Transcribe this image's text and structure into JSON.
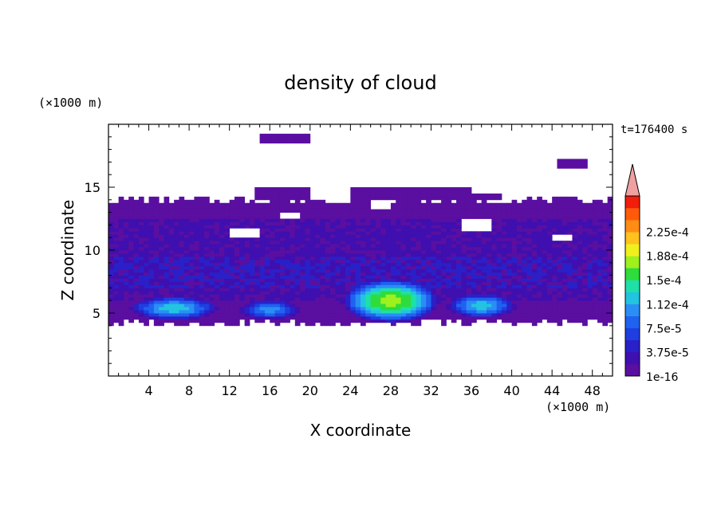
{
  "chart_data": {
    "type": "heatmap",
    "title": "density of cloud",
    "xlabel": "X coordinate",
    "ylabel": "Z coordinate",
    "x_unit": "(×1000 m)",
    "y_unit": "(×1000 m)",
    "time_label": "t=176400 s",
    "xlim": [
      0,
      50
    ],
    "ylim": [
      0,
      20
    ],
    "x_ticks": [
      4,
      8,
      12,
      16,
      20,
      24,
      28,
      32,
      36,
      40,
      44,
      48
    ],
    "y_ticks": [
      5,
      10,
      15
    ],
    "colorbar": {
      "labels": [
        "2.25e-4",
        "1.88e-4",
        "1.5e-4",
        "1.12e-4",
        "7.5e-5",
        "3.75e-5",
        "1e-16"
      ],
      "label_levels": [
        0.000225,
        0.000188,
        0.00015,
        0.000112,
        7.5e-05,
        3.75e-05,
        0
      ],
      "colors": [
        "#5a0fa0",
        "#3f0fb0",
        "#2a20c8",
        "#1e3ee0",
        "#1f62f0",
        "#2a8ef5",
        "#22c4e0",
        "#1ee0a8",
        "#2edc3c",
        "#9ef01e",
        "#f0f01e",
        "#ffc21e",
        "#ff8c14",
        "#ff5a0a",
        "#f01e0a"
      ],
      "extend_color": "#f0a0a0"
    },
    "cloud_field": {
      "description_levels": "value index 0..15 (0 = none, 1 = lowest contour band)",
      "background_band": {
        "x": [
          0,
          50
        ],
        "z": [
          4.2,
          14.0
        ],
        "level": 1
      },
      "upper_patches": [
        {
          "x": [
            14.5,
            20
          ],
          "z": [
            14,
            15
          ],
          "level": 1
        },
        {
          "x": [
            24,
            36
          ],
          "z": [
            14,
            15
          ],
          "level": 1
        },
        {
          "x": [
            29,
            39
          ],
          "z": [
            14,
            14.6
          ],
          "level": 1
        },
        {
          "x": [
            14.8,
            19.8
          ],
          "z": [
            18.5,
            19.2
          ],
          "level": 1
        },
        {
          "x": [
            44.5,
            47.5
          ],
          "z": [
            16.5,
            17.2
          ],
          "level": 1
        }
      ],
      "cores": [
        {
          "x": 6.5,
          "z": 5.4,
          "rx": 4.5,
          "rz": 1.0,
          "peak": 6
        },
        {
          "x": 16.0,
          "z": 5.3,
          "rx": 3.0,
          "rz": 0.8,
          "peak": 5
        },
        {
          "x": 28.0,
          "z": 6.0,
          "rx": 5.0,
          "rz": 1.8,
          "peak": 9
        },
        {
          "x": 37.0,
          "z": 5.6,
          "rx": 3.5,
          "rz": 1.0,
          "peak": 6
        }
      ],
      "gaps": [
        {
          "x": [
            12,
            15
          ],
          "z": [
            11,
            11.8
          ]
        },
        {
          "x": [
            17,
            19
          ],
          "z": [
            12.5,
            13
          ]
        },
        {
          "x": [
            35,
            38
          ],
          "z": [
            11.5,
            12.6
          ]
        },
        {
          "x": [
            26,
            28
          ],
          "z": [
            13.3,
            13.9
          ]
        },
        {
          "x": [
            44,
            46
          ],
          "z": [
            10.8,
            11.2
          ]
        }
      ]
    }
  }
}
